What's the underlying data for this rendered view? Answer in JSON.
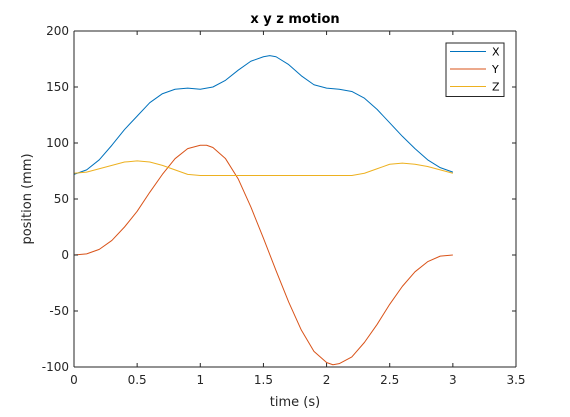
{
  "chart_data": {
    "type": "line",
    "title": "x y z motion",
    "xlabel": "time (s)",
    "ylabel": "position (mm)",
    "xlim": [
      0,
      3.5
    ],
    "ylim": [
      -100,
      200
    ],
    "xticks": [
      0,
      0.5,
      1,
      1.5,
      2,
      2.5,
      3,
      3.5
    ],
    "xtick_labels": [
      "0",
      "0.5",
      "1",
      "1.5",
      "2",
      "2.5",
      "3",
      "3.5"
    ],
    "yticks": [
      -100,
      -50,
      0,
      50,
      100,
      150,
      200
    ],
    "ytick_labels": [
      "-100",
      "-50",
      "0",
      "50",
      "100",
      "150",
      "200"
    ],
    "grid": false,
    "legend_position": "top-right",
    "series": [
      {
        "name": "X",
        "color": "#0072BD",
        "x": [
          0,
          0.1,
          0.2,
          0.3,
          0.4,
          0.5,
          0.6,
          0.7,
          0.8,
          0.9,
          1.0,
          1.1,
          1.2,
          1.3,
          1.4,
          1.5,
          1.55,
          1.6,
          1.7,
          1.8,
          1.9,
          2.0,
          2.1,
          2.2,
          2.3,
          2.4,
          2.5,
          2.6,
          2.7,
          2.8,
          2.9,
          3.0
        ],
        "y": [
          72,
          76,
          85,
          98,
          112,
          124,
          136,
          144,
          148,
          149,
          148,
          150,
          156,
          165,
          173,
          177,
          178,
          177,
          170,
          160,
          152,
          149,
          148,
          146,
          140,
          130,
          118,
          106,
          95,
          85,
          78,
          74
        ]
      },
      {
        "name": "Y",
        "color": "#D95319",
        "x": [
          0,
          0.1,
          0.2,
          0.3,
          0.4,
          0.5,
          0.6,
          0.7,
          0.8,
          0.9,
          1.0,
          1.05,
          1.1,
          1.2,
          1.3,
          1.4,
          1.5,
          1.6,
          1.7,
          1.8,
          1.9,
          2.0,
          2.05,
          2.1,
          2.2,
          2.3,
          2.4,
          2.5,
          2.6,
          2.7,
          2.8,
          2.9,
          3.0
        ],
        "y": [
          0,
          1,
          5,
          13,
          25,
          39,
          56,
          72,
          86,
          95,
          98,
          98,
          96,
          86,
          68,
          43,
          15,
          -14,
          -42,
          -67,
          -86,
          -96,
          -98,
          -97,
          -91,
          -78,
          -62,
          -44,
          -28,
          -15,
          -6,
          -1,
          0
        ]
      },
      {
        "name": "Z",
        "color": "#EDB120",
        "x": [
          0,
          0.1,
          0.2,
          0.3,
          0.4,
          0.5,
          0.6,
          0.7,
          0.8,
          0.9,
          1.0,
          1.5,
          2.0,
          2.2,
          2.3,
          2.4,
          2.5,
          2.6,
          2.7,
          2.8,
          2.9,
          3.0
        ],
        "y": [
          73,
          74,
          77,
          80,
          83,
          84,
          83,
          80,
          76,
          72,
          71,
          71,
          71,
          71,
          73,
          77,
          81,
          82,
          81,
          79,
          76,
          73
        ]
      }
    ]
  }
}
